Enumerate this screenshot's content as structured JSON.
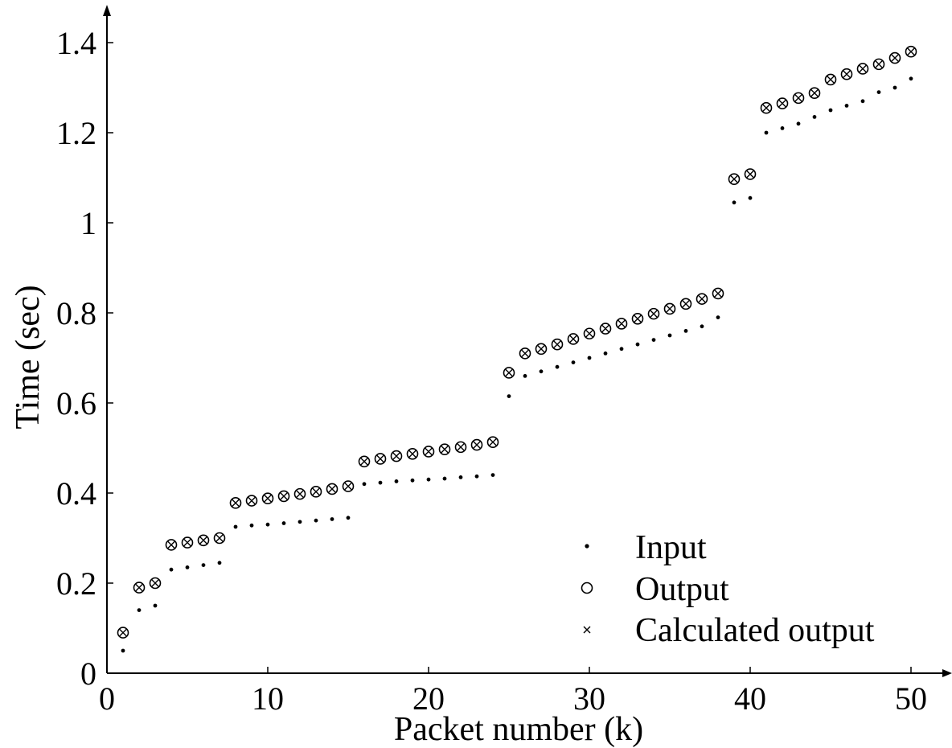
{
  "chart_data": {
    "type": "scatter",
    "title": "",
    "xlabel": "Packet number (k)",
    "ylabel": "Time (sec)",
    "xlim": [
      0,
      52
    ],
    "ylim": [
      0,
      1.45
    ],
    "xticks": [
      "0",
      "10",
      "20",
      "30",
      "40",
      "50"
    ],
    "yticks": [
      "0",
      "0.2",
      "0.4",
      "0.6",
      "0.8",
      "1",
      "1.2",
      "1.4"
    ],
    "grid": false,
    "legend_position": "bottom-right",
    "x": [
      1,
      2,
      3,
      4,
      5,
      6,
      7,
      8,
      9,
      10,
      11,
      12,
      13,
      14,
      15,
      16,
      17,
      18,
      19,
      20,
      21,
      22,
      23,
      24,
      25,
      26,
      27,
      28,
      29,
      30,
      31,
      32,
      33,
      34,
      35,
      36,
      37,
      38,
      39,
      40,
      41,
      42,
      43,
      44,
      45,
      46,
      47,
      48,
      49,
      50
    ],
    "series": [
      {
        "name": "Input",
        "marker": "dot",
        "values": [
          0.05,
          0.14,
          0.15,
          0.23,
          0.235,
          0.24,
          0.245,
          0.325,
          0.328,
          0.33,
          0.333,
          0.336,
          0.339,
          0.342,
          0.345,
          0.42,
          0.423,
          0.426,
          0.428,
          0.43,
          0.432,
          0.435,
          0.437,
          0.44,
          0.615,
          0.66,
          0.67,
          0.68,
          0.69,
          0.7,
          0.71,
          0.72,
          0.73,
          0.74,
          0.75,
          0.76,
          0.77,
          0.79,
          1.045,
          1.055,
          1.2,
          1.21,
          1.22,
          1.235,
          1.25,
          1.26,
          1.27,
          1.29,
          1.3,
          1.32
        ]
      },
      {
        "name": "Output",
        "marker": "circle",
        "values": [
          0.09,
          0.19,
          0.2,
          0.285,
          0.29,
          0.295,
          0.3,
          0.378,
          0.383,
          0.388,
          0.393,
          0.398,
          0.403,
          0.409,
          0.415,
          0.47,
          0.476,
          0.482,
          0.487,
          0.492,
          0.497,
          0.502,
          0.507,
          0.513,
          0.667,
          0.71,
          0.72,
          0.73,
          0.742,
          0.754,
          0.765,
          0.776,
          0.787,
          0.798,
          0.809,
          0.82,
          0.831,
          0.843,
          1.097,
          1.108,
          1.255,
          1.265,
          1.277,
          1.288,
          1.318,
          1.33,
          1.342,
          1.352,
          1.366,
          1.38
        ]
      },
      {
        "name": "Calculated output",
        "marker": "x",
        "values": [
          0.09,
          0.19,
          0.2,
          0.285,
          0.29,
          0.295,
          0.3,
          0.378,
          0.383,
          0.388,
          0.393,
          0.398,
          0.403,
          0.409,
          0.415,
          0.47,
          0.476,
          0.482,
          0.487,
          0.492,
          0.497,
          0.502,
          0.507,
          0.513,
          0.667,
          0.71,
          0.72,
          0.73,
          0.742,
          0.754,
          0.765,
          0.776,
          0.787,
          0.798,
          0.809,
          0.82,
          0.831,
          0.843,
          1.097,
          1.108,
          1.255,
          1.265,
          1.277,
          1.288,
          1.318,
          1.33,
          1.342,
          1.352,
          1.366,
          1.38
        ]
      }
    ]
  }
}
